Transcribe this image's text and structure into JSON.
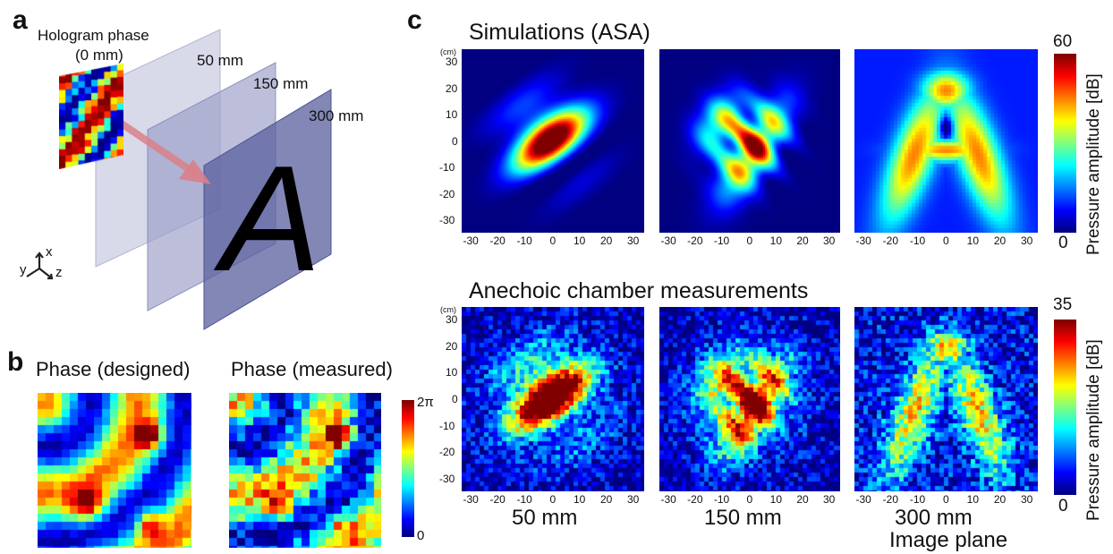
{
  "panel_a": {
    "letter": "a",
    "hologram_label_1": "Hologram phase",
    "hologram_label_2": "(0 mm)",
    "planes": [
      "50 mm",
      "150 mm",
      "300 mm"
    ],
    "target_letter": "A",
    "axes": {
      "x": "x",
      "y": "y",
      "z": "z"
    }
  },
  "panel_b": {
    "letter": "b",
    "title_designed": "Phase (designed)",
    "title_measured": "Phase (measured)",
    "colorbar_max": "2π",
    "colorbar_min": "0"
  },
  "panel_c": {
    "letter": "c",
    "row1_title": "Simulations (ASA)",
    "row2_title": "Anechoic chamber measurements",
    "unit": "(cm)",
    "y_ticks": [
      "30",
      "20",
      "10",
      "0",
      "-10",
      "-20",
      "-30"
    ],
    "x_ticks": [
      "-30",
      "-20",
      "-10",
      "0",
      "10",
      "20",
      "30"
    ],
    "cbar1_max": "60",
    "cbar1_min": "0",
    "cbar2_max": "35",
    "cbar2_min": "0",
    "cbar_label": "Pressure amplitude [dB]",
    "col_labels": [
      "50 mm",
      "150 mm",
      "300 mm"
    ],
    "image_plane_label": "Image plane"
  },
  "colors": {
    "jet_dark_blue": "#00008f",
    "plane_fill": "#5a5f9e",
    "arrow": "#d9808a"
  }
}
